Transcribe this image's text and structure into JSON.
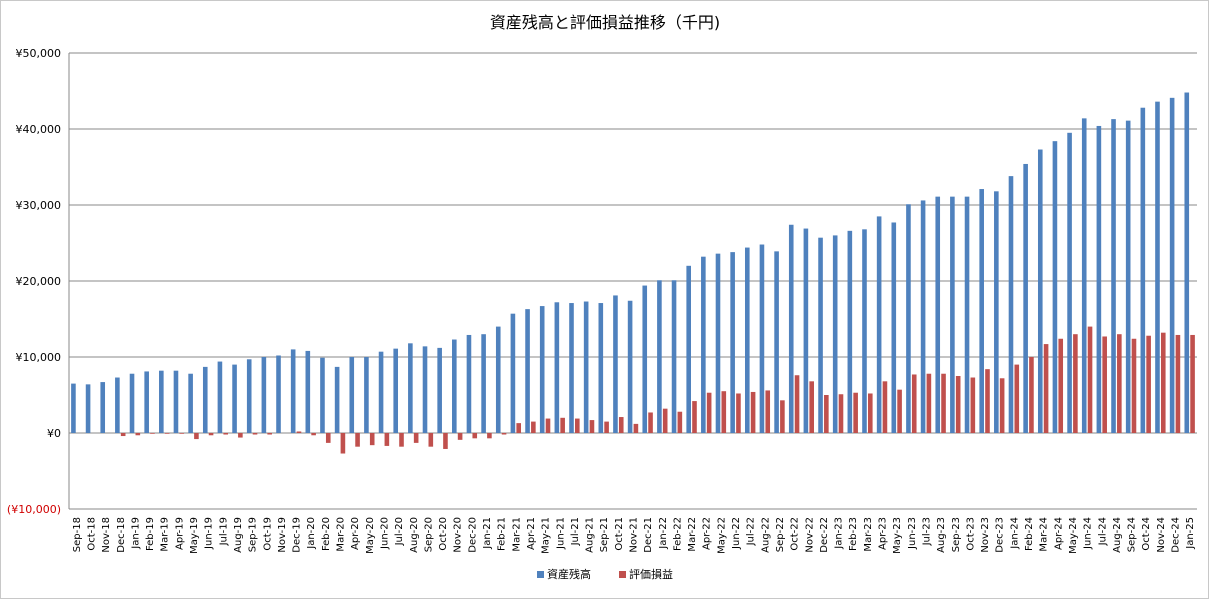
{
  "chart_data": {
    "type": "bar",
    "title": "資産残高と評価損益推移（千円)",
    "xlabel": "",
    "ylabel": "",
    "ylim": [
      -10000,
      50000
    ],
    "yticks": [
      -10000,
      0,
      10000,
      20000,
      30000,
      40000,
      50000
    ],
    "ytick_labels": [
      "(¥10,000)",
      "¥0",
      "¥10,000",
      "¥20,000",
      "¥30,000",
      "¥40,000",
      "¥50,000"
    ],
    "grid": true,
    "legend_position": "bottom",
    "categories": [
      "Sep-18",
      "Oct-18",
      "Nov-18",
      "Dec-18",
      "Jan-19",
      "Feb-19",
      "Mar-19",
      "Apr-19",
      "May-19",
      "Jun-19",
      "Jul-19",
      "Aug-19",
      "Sep-19",
      "Oct-19",
      "Nov-19",
      "Dec-19",
      "Jan-20",
      "Feb-20",
      "Mar-20",
      "Apr-20",
      "May-20",
      "Jun-20",
      "Jul-20",
      "Aug-20",
      "Sep-20",
      "Oct-20",
      "Nov-20",
      "Dec-20",
      "Jan-21",
      "Feb-21",
      "Mar-21",
      "Apr-21",
      "May-21",
      "Jun-21",
      "Jul-21",
      "Aug-21",
      "Sep-21",
      "Oct-21",
      "Nov-21",
      "Dec-21",
      "Jan-22",
      "Feb-22",
      "Mar-22",
      "Apr-22",
      "May-22",
      "Jun-22",
      "Jul-22",
      "Aug-22",
      "Sep-22",
      "Oct-22",
      "Nov-22",
      "Dec-22",
      "Jan-23",
      "Feb-23",
      "Mar-23",
      "Apr-23",
      "May-23",
      "Jun-23",
      "Jul-23",
      "Aug-23",
      "Sep-23",
      "Oct-23",
      "Nov-23",
      "Dec-23",
      "Jan-24",
      "Feb-24",
      "Mar-24",
      "Apr-24",
      "May-24",
      "Jun-24",
      "Jul-24",
      "Aug-24",
      "Sep-24",
      "Oct-24",
      "Nov-24",
      "Dec-24",
      "Jan-25"
    ],
    "series": [
      {
        "name": "資産残高",
        "color": "#4f81bd",
        "values": [
          6500,
          6400,
          6700,
          7300,
          7800,
          8100,
          8200,
          8200,
          7800,
          8700,
          9400,
          9000,
          9700,
          10000,
          10200,
          11000,
          10800,
          9900,
          8700,
          10000,
          10000,
          10700,
          11100,
          11800,
          11400,
          11200,
          12300,
          12900,
          13000,
          14000,
          15700,
          16300,
          16700,
          17200,
          17100,
          17300,
          17100,
          18100,
          17400,
          19400,
          20100,
          20100,
          22000,
          23200,
          23600,
          23800,
          24400,
          24800,
          23900,
          27400,
          26900,
          25700,
          26000,
          26600,
          26800,
          28500,
          27700,
          30100,
          30600,
          31100,
          31100,
          31100,
          32100,
          31800,
          33800,
          35400,
          37300,
          38400,
          39500,
          41400,
          40400,
          41300,
          41100,
          42800,
          43600,
          44100,
          44800
        ]
      },
      {
        "name": "評価損益",
        "color": "#c0504d",
        "values": [
          0,
          0,
          0,
          -400,
          -300,
          -100,
          -100,
          -100,
          -800,
          -300,
          -200,
          -600,
          -200,
          -200,
          0,
          200,
          -300,
          -1300,
          -2700,
          -1800,
          -1600,
          -1700,
          -1800,
          -1300,
          -1800,
          -2100,
          -900,
          -700,
          -700,
          -200,
          1300,
          1500,
          1900,
          2000,
          1900,
          1700,
          1500,
          2100,
          1200,
          2700,
          3200,
          2800,
          4200,
          5300,
          5500,
          5200,
          5400,
          5600,
          4300,
          7600,
          6800,
          5000,
          5100,
          5300,
          5200,
          6800,
          5700,
          7700,
          7800,
          7800,
          7500,
          7300,
          8400,
          7200,
          9000,
          10000,
          11700,
          12400,
          13000,
          14000,
          12700,
          13000,
          12400,
          12800,
          13200,
          12900,
          12900
        ]
      }
    ]
  }
}
